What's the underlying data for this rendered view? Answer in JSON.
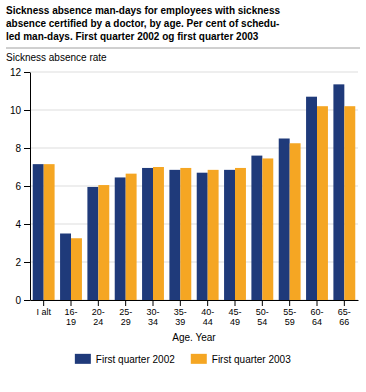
{
  "chart_data": {
    "type": "bar",
    "title": "Sickness absence man-days for employees with sickness\nabsence certified by a doctor, by age. Per cent of schedu-\nled man-days. First quarter 2002 og first quarter 2003",
    "ylabel": "Sickness absence rate",
    "xlabel": "Age. Year",
    "categories": [
      "I alt",
      "16-\n19",
      "20-\n24",
      "25-\n29",
      "30-\n34",
      "35-\n39",
      "40-\n44",
      "45-\n49",
      "50-\n54",
      "55-\n59",
      "60-\n64",
      "65-\n66"
    ],
    "series": [
      {
        "name": "First quarter 2002",
        "color": "#1F3A7A",
        "values": [
          7.15,
          3.5,
          5.95,
          6.45,
          6.95,
          6.85,
          6.7,
          6.85,
          7.6,
          8.5,
          10.7,
          11.35
        ]
      },
      {
        "name": "First quarter 2003",
        "color": "#F5A623",
        "values": [
          7.15,
          3.25,
          6.05,
          6.65,
          7.0,
          6.95,
          6.85,
          6.95,
          7.45,
          8.25,
          10.2,
          10.2
        ]
      }
    ],
    "ylim": [
      0,
      12
    ],
    "yticks": [
      0,
      2,
      4,
      6,
      8,
      10,
      12
    ],
    "grid": true,
    "legend": "bottom"
  }
}
